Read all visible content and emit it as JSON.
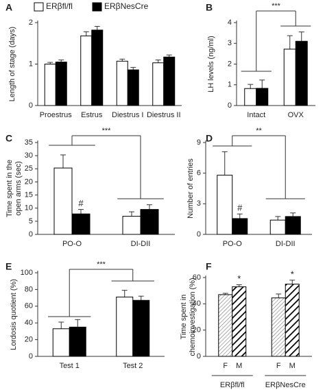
{
  "chart_data": [
    {
      "type": "bar",
      "panel": "A",
      "ylabel": [
        "Length of stage (days)"
      ],
      "legend": true,
      "categories": [
        "Proestrus",
        "Estrus",
        "Diestrus I",
        "Diestrus II"
      ],
      "ylim": [
        0,
        2
      ],
      "yticks": [
        0,
        1,
        2
      ],
      "series": [
        {
          "name": "ERβfl/fl",
          "color": "#ffffff",
          "values": [
            1.0,
            1.68,
            1.07,
            1.03
          ],
          "errors": [
            0.04,
            0.1,
            0.05,
            0.07
          ]
        },
        {
          "name": "ERβNesCre",
          "color": "#000000",
          "values": [
            1.05,
            1.82,
            0.86,
            1.17
          ],
          "errors": [
            0.05,
            0.09,
            0.06,
            0.05
          ]
        }
      ]
    },
    {
      "type": "bar",
      "panel": "B",
      "ylabel": [
        "LH levels (ng/ml)"
      ],
      "significance": "***",
      "categories": [
        "Intact",
        "OVX"
      ],
      "ylim": [
        0,
        4
      ],
      "yticks": [
        0,
        1,
        2,
        3,
        4
      ],
      "series": [
        {
          "name": "ERβfl/fl",
          "color": "#ffffff",
          "values": [
            0.82,
            2.72
          ],
          "errors": [
            0.2,
            0.65
          ]
        },
        {
          "name": "ERβNesCre",
          "color": "#000000",
          "values": [
            0.83,
            3.1
          ],
          "errors": [
            0.4,
            0.45
          ]
        }
      ]
    },
    {
      "type": "bar",
      "panel": "C",
      "ylabel": [
        "Time spent in the",
        "open arms (sec)"
      ],
      "significance": "***",
      "categories": [
        "PO-O",
        "DI-DII"
      ],
      "ylim": [
        0,
        35
      ],
      "yticks": [
        0,
        5,
        10,
        15,
        20,
        25,
        30,
        35
      ],
      "series": [
        {
          "name": "ERβfl/fl",
          "color": "#ffffff",
          "values": [
            25.3,
            6.9
          ],
          "errors": [
            5.0,
            1.7
          ]
        },
        {
          "name": "ERβNesCre",
          "color": "#000000",
          "values": [
            7.8,
            9.5
          ],
          "errors": [
            1.7,
            1.8
          ],
          "annotations": [
            "#",
            null
          ]
        }
      ]
    },
    {
      "type": "bar",
      "panel": "D",
      "ylabel": [
        "Number of entries"
      ],
      "significance": "**",
      "categories": [
        "PO-O",
        "DI-DII"
      ],
      "ylim": [
        0,
        9
      ],
      "yticks": [
        0,
        3,
        6,
        9
      ],
      "series": [
        {
          "name": "ERβfl/fl",
          "color": "#ffffff",
          "values": [
            5.8,
            1.4
          ],
          "errors": [
            2.3,
            0.35
          ]
        },
        {
          "name": "ERβNesCre",
          "color": "#000000",
          "values": [
            1.55,
            1.75
          ],
          "errors": [
            0.45,
            0.35
          ],
          "annotations": [
            "#",
            null
          ]
        }
      ]
    },
    {
      "type": "bar",
      "panel": "E",
      "ylabel": [
        "Lordosis quotient (%)"
      ],
      "significance": "***",
      "categories": [
        "Test 1",
        "Test 2"
      ],
      "ylim": [
        0,
        100
      ],
      "yticks": [
        0,
        20,
        40,
        60,
        80,
        100
      ],
      "series": [
        {
          "name": "ERβfl/fl",
          "color": "#ffffff",
          "values": [
            33,
            71
          ],
          "errors": [
            8,
            8
          ]
        },
        {
          "name": "ERβNesCre",
          "color": "#000000",
          "values": [
            35,
            67
          ],
          "errors": [
            9,
            5
          ]
        }
      ]
    },
    {
      "type": "bar",
      "panel": "F",
      "ylabel": [
        "Time spent in",
        "chemoinvestigation (%)"
      ],
      "categories": [
        "ERβfl/fl",
        "ERβNesCre"
      ],
      "ylim": [
        0,
        60
      ],
      "yticks": [
        0,
        20,
        40,
        60
      ],
      "series": [
        {
          "name": "F",
          "pattern": "light",
          "values": [
            47,
            44.5
          ],
          "errors": [
            1,
            3
          ]
        },
        {
          "name": "M",
          "pattern": "bold",
          "values": [
            53,
            55
          ],
          "errors": [
            1.5,
            3
          ],
          "annotations": [
            "*",
            "*"
          ]
        }
      ]
    }
  ]
}
